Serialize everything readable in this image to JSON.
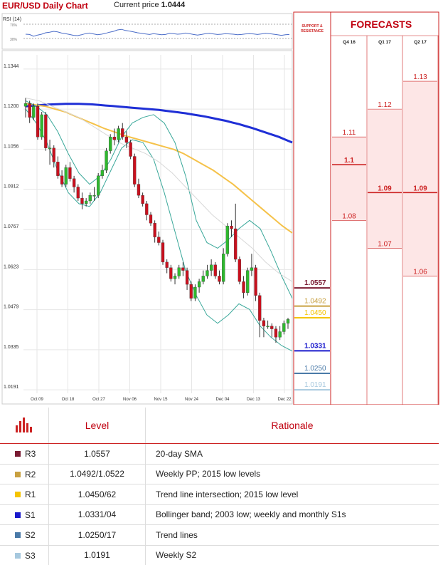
{
  "header": {
    "title": "EUR/USD Daily Chart",
    "price_label": "Current price",
    "price_value": "1.0444"
  },
  "rsi": {
    "label": "RSI (14)",
    "levels": [
      "70%",
      "30%"
    ],
    "values": [
      0.45,
      0.44,
      0.38,
      0.42,
      0.45,
      0.5,
      0.52,
      0.55,
      0.53,
      0.49,
      0.47,
      0.44,
      0.41,
      0.4,
      0.43,
      0.47,
      0.49,
      0.46,
      0.43,
      0.45,
      0.48,
      0.52,
      0.55,
      0.6,
      0.62,
      0.58,
      0.56,
      0.53,
      0.5,
      0.48,
      0.46,
      0.44,
      0.47,
      0.45,
      0.43,
      0.44,
      0.48,
      0.47,
      0.45,
      0.46,
      0.49,
      0.47,
      0.44,
      0.42,
      0.44,
      0.47,
      0.48,
      0.46,
      0.44,
      0.45,
      0.47,
      0.46,
      0.45,
      0.43,
      0.44,
      0.46,
      0.47,
      0.46,
      0.44,
      0.46,
      0.48,
      0.47,
      0.45,
      0.43,
      0.41,
      0.43,
      0.44
    ]
  },
  "side_panel": {
    "support_label": "SUPPORT & RESISTANCE",
    "forecast_title": "FORECASTS",
    "periods": [
      "Q4 16",
      "Q1 17",
      "Q2 17"
    ]
  },
  "colors": {
    "R3": "#7a1b33",
    "R2": "#c8a040",
    "R1": "#f5c400",
    "S1": "#1a1acc",
    "S2": "#4a7aa8",
    "S3": "#a6c8de",
    "bull": "#2eb82e",
    "bear": "#c8101e",
    "sma200": "#1f2fd6",
    "sma55": "#f5c24a",
    "bb": "#3aa89a",
    "mid": "#d8d8d8",
    "accent": "#c0000f"
  },
  "chart_data": {
    "type": "candlestick",
    "title": "EUR/USD Daily Chart",
    "y_ticks": [
      "1.1344",
      "1.1200",
      "1.1056",
      "1.0912",
      "1.0767",
      "1.0623",
      "1.0479",
      "1.0335",
      "1.0191"
    ],
    "ylim": [
      1.014,
      1.1395
    ],
    "x_ticks": [
      "Oct 09",
      "Oct 18",
      "Oct 27",
      "Nov 06",
      "Nov 15",
      "Nov 24",
      "Dec 04",
      "Dec 13",
      "Dec 22"
    ],
    "candles": [
      [
        1.121,
        1.122,
        1.124,
        1.117
      ],
      [
        1.122,
        1.117,
        1.123,
        1.115
      ],
      [
        1.117,
        1.121,
        1.122,
        1.116
      ],
      [
        1.121,
        1.11,
        1.122,
        1.109
      ],
      [
        1.11,
        1.118,
        1.119,
        1.109
      ],
      [
        1.118,
        1.106,
        1.119,
        1.105
      ],
      [
        1.106,
        1.106,
        1.109,
        1.1
      ],
      [
        1.106,
        1.101,
        1.107,
        1.099
      ],
      [
        1.101,
        1.096,
        1.103,
        1.095
      ],
      [
        1.096,
        1.093,
        1.098,
        1.092
      ],
      [
        1.093,
        1.099,
        1.1,
        1.092
      ],
      [
        1.099,
        1.095,
        1.101,
        1.094
      ],
      [
        1.095,
        1.092,
        1.096,
        1.09
      ],
      [
        1.092,
        1.088,
        1.093,
        1.087
      ],
      [
        1.088,
        1.086,
        1.09,
        1.084
      ],
      [
        1.086,
        1.087,
        1.088,
        1.085
      ],
      [
        1.087,
        1.089,
        1.09,
        1.086
      ],
      [
        1.089,
        1.089,
        1.092,
        1.087
      ],
      [
        1.089,
        1.096,
        1.097,
        1.088
      ],
      [
        1.096,
        1.098,
        1.1,
        1.095
      ],
      [
        1.098,
        1.105,
        1.106,
        1.097
      ],
      [
        1.105,
        1.11,
        1.111,
        1.104
      ],
      [
        1.11,
        1.109,
        1.113,
        1.107
      ],
      [
        1.109,
        1.113,
        1.114,
        1.108
      ],
      [
        1.113,
        1.11,
        1.115,
        1.109
      ],
      [
        1.11,
        1.108,
        1.112,
        1.106
      ],
      [
        1.108,
        1.103,
        1.109,
        1.102
      ],
      [
        1.103,
        1.093,
        1.104,
        1.092
      ],
      [
        1.093,
        1.089,
        1.095,
        1.088
      ],
      [
        1.089,
        1.086,
        1.09,
        1.085
      ],
      [
        1.086,
        1.082,
        1.087,
        1.08
      ],
      [
        1.082,
        1.079,
        1.083,
        1.078
      ],
      [
        1.079,
        1.074,
        1.08,
        1.072
      ],
      [
        1.074,
        1.072,
        1.076,
        1.071
      ],
      [
        1.072,
        1.065,
        1.073,
        1.064
      ],
      [
        1.065,
        1.063,
        1.066,
        1.061
      ],
      [
        1.063,
        1.059,
        1.064,
        1.058
      ],
      [
        1.059,
        1.06,
        1.061,
        1.057
      ],
      [
        1.06,
        1.063,
        1.064,
        1.059
      ],
      [
        1.063,
        1.062,
        1.065,
        1.06
      ],
      [
        1.062,
        1.057,
        1.063,
        1.055
      ],
      [
        1.057,
        1.052,
        1.058,
        1.051
      ],
      [
        1.052,
        1.056,
        1.057,
        1.051
      ],
      [
        1.056,
        1.058,
        1.059,
        1.054
      ],
      [
        1.058,
        1.06,
        1.062,
        1.057
      ],
      [
        1.06,
        1.062,
        1.064,
        1.059
      ],
      [
        1.062,
        1.064,
        1.066,
        1.06
      ],
      [
        1.064,
        1.06,
        1.065,
        1.059
      ],
      [
        1.06,
        1.058,
        1.062,
        1.057
      ],
      [
        1.058,
        1.068,
        1.07,
        1.057
      ],
      [
        1.068,
        1.078,
        1.079,
        1.067
      ],
      [
        1.078,
        1.077,
        1.08,
        1.074
      ],
      [
        1.077,
        1.066,
        1.086,
        1.065
      ],
      [
        1.066,
        1.058,
        1.067,
        1.057
      ],
      [
        1.058,
        1.054,
        1.06,
        1.052
      ],
      [
        1.054,
        1.062,
        1.063,
        1.053
      ],
      [
        1.062,
        1.063,
        1.068,
        1.06
      ],
      [
        1.063,
        1.053,
        1.064,
        1.051
      ],
      [
        1.053,
        1.044,
        1.054,
        1.038
      ],
      [
        1.044,
        1.042,
        1.045,
        1.038
      ],
      [
        1.042,
        1.042,
        1.044,
        1.041
      ],
      [
        1.042,
        1.041,
        1.043,
        1.038
      ],
      [
        1.041,
        1.038,
        1.042,
        1.036
      ],
      [
        1.038,
        1.04,
        1.042,
        1.037
      ],
      [
        1.04,
        1.043,
        1.044,
        1.039
      ],
      [
        1.043,
        1.0444,
        1.045,
        1.041
      ]
    ],
    "series": [
      {
        "name": "",
        "values": [
          1.121,
          1.1212,
          1.1214,
          1.1216,
          1.1217,
          1.1218,
          1.1219,
          1.1219,
          1.1219,
          1.1218,
          1.1217,
          1.1215,
          1.1213,
          1.1211,
          1.1209,
          1.1207,
          1.1205,
          1.1203,
          1.1201,
          1.1199,
          1.1197,
          1.1194,
          1.1191,
          1.1188,
          1.1185,
          1.1181,
          1.1177,
          1.1173,
          1.1168,
          1.1163,
          1.1158,
          1.1152,
          1.1146,
          1.1139,
          1.1132,
          1.1124,
          1.1116,
          1.1108,
          1.11,
          1.109,
          1.108
        ]
      },
      {
        "name": "",
        "values": [
          1.122,
          1.1215,
          1.121,
          1.12,
          1.119,
          1.1175,
          1.116,
          1.1145,
          1.113,
          1.1118,
          1.1105,
          1.1095,
          1.1085,
          1.1075,
          1.1065,
          1.1055,
          1.104,
          1.102,
          1.1,
          1.098,
          1.0955,
          1.093,
          1.09,
          1.087,
          1.084,
          1.081,
          1.078,
          1.0755
        ]
      },
      {
        "name": "",
        "values": [
          1.123,
          1.121,
          1.118,
          1.112,
          1.104,
          1.097,
          1.093,
          1.096,
          1.102,
          1.11,
          1.115,
          1.117,
          1.118,
          1.115,
          1.108,
          1.096,
          1.08,
          1.072,
          1.07,
          1.073,
          1.077,
          1.08,
          1.077,
          1.069,
          1.06,
          1.052
        ]
      },
      {
        "name": "",
        "values": [
          1.12,
          1.115,
          1.108,
          1.098,
          1.09,
          1.086,
          1.085,
          1.09,
          1.098,
          1.106,
          1.109,
          1.108,
          1.102,
          1.09,
          1.076,
          1.062,
          1.053,
          1.046,
          1.043,
          1.046,
          1.05,
          1.048,
          1.042,
          1.038,
          1.035,
          1.033
        ]
      },
      {
        "name": "",
        "values": [
          1.124,
          1.123,
          1.121,
          1.119,
          1.117,
          1.114,
          1.111,
          1.108,
          1.106,
          1.104,
          1.101,
          1.097,
          1.092,
          1.087,
          1.082,
          1.078,
          1.074,
          1.07,
          1.065,
          1.061,
          1.058
        ]
      }
    ],
    "levels": [
      {
        "code": "R3",
        "value": "1.0557"
      },
      {
        "code": "R2",
        "value": "1.0492"
      },
      {
        "code": "R1",
        "value": "1.0450"
      },
      {
        "code": "S1",
        "value": "1.0331"
      },
      {
        "code": "S2",
        "value": "1.0250"
      },
      {
        "code": "S3",
        "value": "1.0191"
      }
    ],
    "forecasts": {
      "q4_16": [
        {
          "value": "1.11"
        },
        {
          "value": "1.1",
          "bold": true
        },
        {
          "value": "1.08"
        }
      ],
      "q1_17": [
        {
          "value": "1.12"
        },
        {
          "value": "1.09",
          "bold": true
        },
        {
          "value": "1.07"
        }
      ],
      "q2_17": [
        {
          "value": "1.13"
        },
        {
          "value": "1.09",
          "bold": true
        },
        {
          "value": "1.06"
        }
      ]
    }
  },
  "table": {
    "headers": [
      "Level",
      "Rationale"
    ],
    "rows": [
      {
        "code": "R3",
        "level": "1.0557",
        "rationale": "20-day SMA"
      },
      {
        "code": "R2",
        "level": "1.0492/1.0522",
        "rationale": "Weekly PP; 2015 low levels"
      },
      {
        "code": "R1",
        "level": "1.0450/62",
        "rationale": "Trend line intersection; 2015 low level"
      },
      {
        "code": "S1",
        "level": "1.0331/04",
        "rationale": "Bollinger band; 2003 low; weekly and monthly S1s"
      },
      {
        "code": "S2",
        "level": "1.0250/17",
        "rationale": "Trend lines"
      },
      {
        "code": "S3",
        "level": "1.0191",
        "rationale": "Weekly S2"
      }
    ]
  }
}
